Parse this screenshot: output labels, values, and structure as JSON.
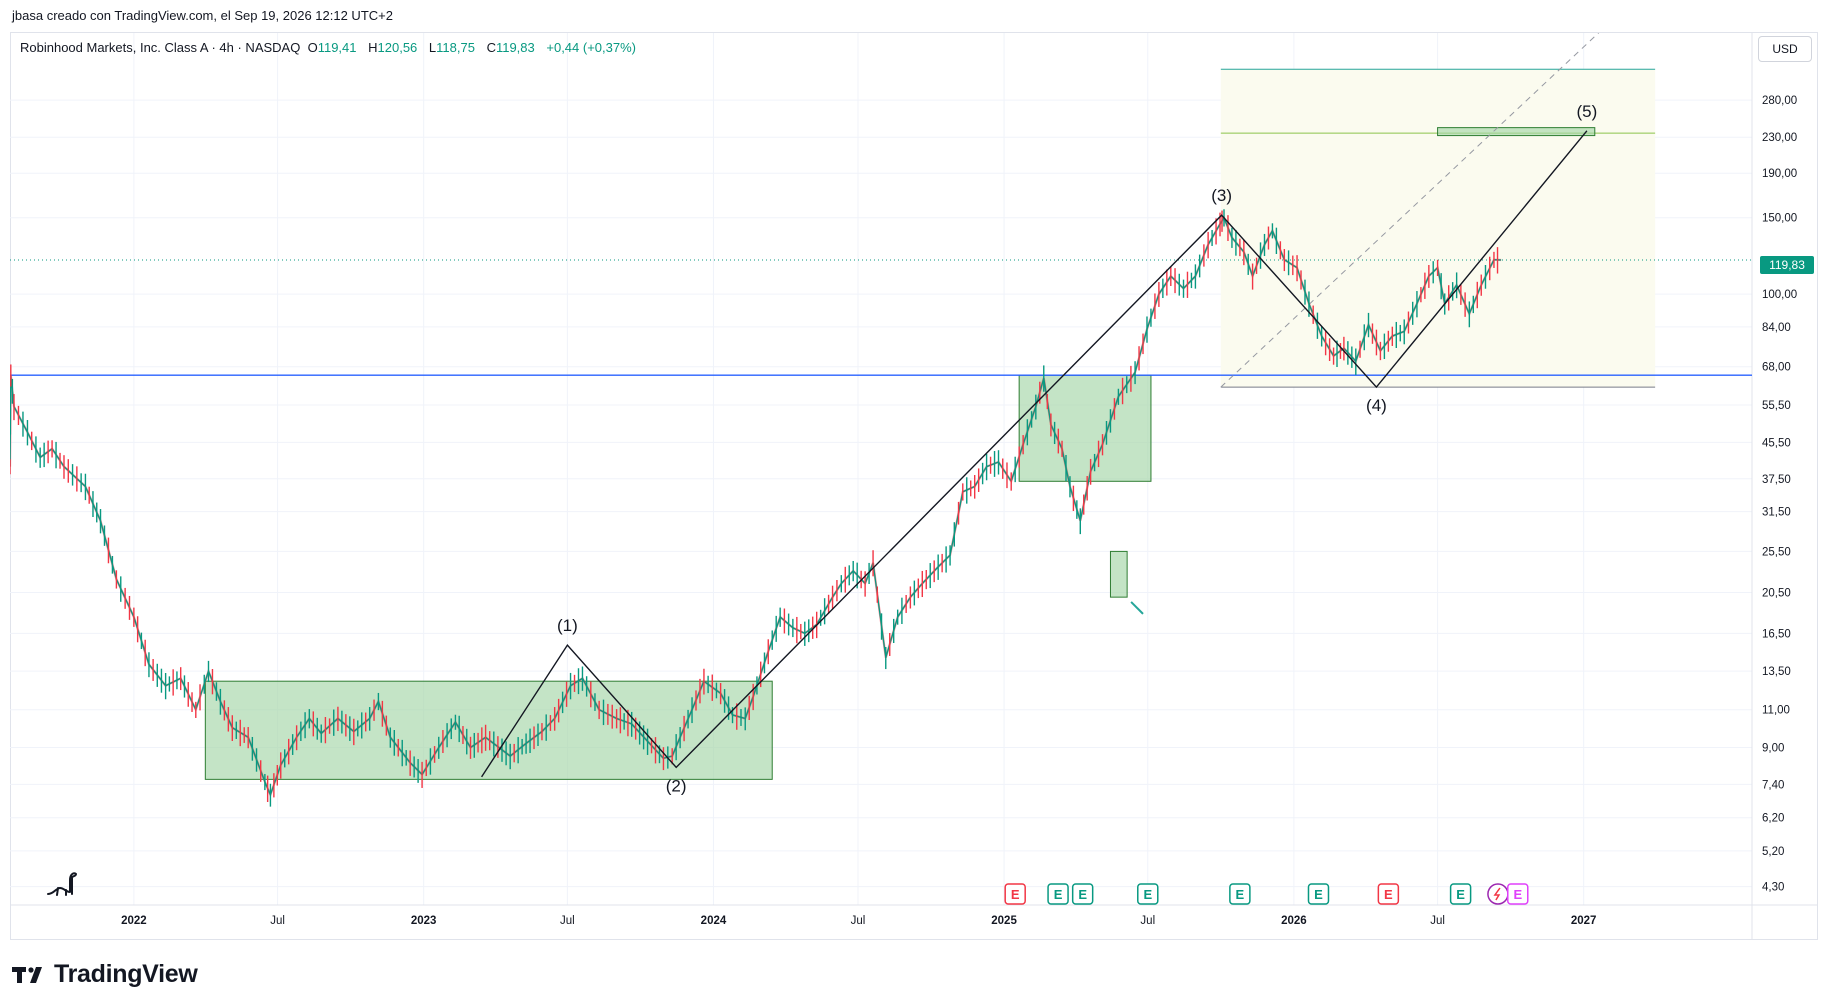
{
  "header": {
    "credit": "jbasa creado con TradingView.com, el Sep 19, 2026 12:12 UTC+2"
  },
  "legend": {
    "symbol": "Robinhood Markets, Inc. Class A · 4h · NASDAQ",
    "open_label": "O",
    "open": "119,41",
    "high_label": "H",
    "high": "120,56",
    "low_label": "L",
    "low": "118,75",
    "close_label": "C",
    "close": "119,83",
    "change": "+0,44 (+0,37%)"
  },
  "currency": "USD",
  "last_price_label": "119,83",
  "brand": {
    "name": "TradingView",
    "icon": "tradingview-logo-icon"
  },
  "colors": {
    "up": "#089981",
    "down": "#f23645",
    "blue_line": "#2962ff",
    "zone_fill": "#a5d6a7",
    "zone_stroke": "#2e7d32",
    "projection_fill": "#fbfbef",
    "teal_line": "#26a69a",
    "green_line": "#8bc34a"
  },
  "chart_data": {
    "type": "line",
    "title": "",
    "xlabel": "",
    "ylabel": "",
    "x_range": [
      "2021-07-29",
      "2027-08-01"
    ],
    "yscale": "log",
    "ylim": [
      3.9,
      400
    ],
    "grid": true,
    "x_tick_labels": [
      {
        "date": "2022-01-01",
        "label": "2022"
      },
      {
        "date": "2022-07-01",
        "label": "Jul"
      },
      {
        "date": "2023-01-01",
        "label": "2023"
      },
      {
        "date": "2023-07-01",
        "label": "Jul"
      },
      {
        "date": "2024-01-01",
        "label": "2024"
      },
      {
        "date": "2024-07-01",
        "label": "Jul"
      },
      {
        "date": "2025-01-01",
        "label": "2025"
      },
      {
        "date": "2025-07-01",
        "label": "Jul"
      },
      {
        "date": "2026-01-01",
        "label": "2026"
      },
      {
        "date": "2026-07-01",
        "label": "Jul"
      },
      {
        "date": "2027-01-01",
        "label": "2027"
      }
    ],
    "y_tick_labels": [
      {
        "value": 280,
        "label": "280,00"
      },
      {
        "value": 230,
        "label": "230,00"
      },
      {
        "value": 190,
        "label": "190,00"
      },
      {
        "value": 150,
        "label": "150,00"
      },
      {
        "value": 100,
        "label": "100,00"
      },
      {
        "value": 84,
        "label": "84,00"
      },
      {
        "value": 68,
        "label": "68,00"
      },
      {
        "value": 55.5,
        "label": "55,50"
      },
      {
        "value": 45.5,
        "label": "45,50"
      },
      {
        "value": 37.5,
        "label": "37,50"
      },
      {
        "value": 31.5,
        "label": "31,50"
      },
      {
        "value": 25.5,
        "label": "25,50"
      },
      {
        "value": 20.5,
        "label": "20,50"
      },
      {
        "value": 16.5,
        "label": "16,50"
      },
      {
        "value": 13.5,
        "label": "13,50"
      },
      {
        "value": 11,
        "label": "11,00"
      },
      {
        "value": 9,
        "label": "9,00"
      },
      {
        "value": 7.4,
        "label": "7,40"
      },
      {
        "value": 6.2,
        "label": "6,20"
      },
      {
        "value": 5.2,
        "label": "5,20"
      },
      {
        "value": 4.3,
        "label": "4,30"
      }
    ],
    "price_path": [
      [
        "2021-07-29",
        40
      ],
      [
        "2021-07-30",
        65
      ],
      [
        "2021-08-03",
        55
      ],
      [
        "2021-08-20",
        48
      ],
      [
        "2021-09-05",
        42
      ],
      [
        "2021-09-20",
        44
      ],
      [
        "2021-10-05",
        40
      ],
      [
        "2021-11-01",
        36
      ],
      [
        "2021-11-20",
        30
      ],
      [
        "2021-12-10",
        22
      ],
      [
        "2022-01-01",
        18
      ],
      [
        "2022-01-20",
        14
      ],
      [
        "2022-02-10",
        12.5
      ],
      [
        "2022-03-01",
        13
      ],
      [
        "2022-03-20",
        11
      ],
      [
        "2022-04-05",
        13.5
      ],
      [
        "2022-04-20",
        11.5
      ],
      [
        "2022-05-05",
        10
      ],
      [
        "2022-05-25",
        9.5
      ],
      [
        "2022-06-15",
        7.5
      ],
      [
        "2022-06-22",
        7
      ],
      [
        "2022-07-05",
        8.2
      ],
      [
        "2022-07-25",
        9.5
      ],
      [
        "2022-08-10",
        10.5
      ],
      [
        "2022-08-25",
        9.7
      ],
      [
        "2022-09-15",
        10.5
      ],
      [
        "2022-10-05",
        9.8
      ],
      [
        "2022-10-25",
        10.5
      ],
      [
        "2022-11-05",
        11.5
      ],
      [
        "2022-11-20",
        9.5
      ],
      [
        "2022-12-15",
        8.3
      ],
      [
        "2022-12-30",
        7.8
      ],
      [
        "2023-01-20",
        9
      ],
      [
        "2023-02-10",
        10.3
      ],
      [
        "2023-03-01",
        9
      ],
      [
        "2023-03-20",
        9.5
      ],
      [
        "2023-04-20",
        8.6
      ],
      [
        "2023-05-10",
        9.2
      ],
      [
        "2023-05-30",
        9.8
      ],
      [
        "2023-06-15",
        10.5
      ],
      [
        "2023-07-05",
        12.5
      ],
      [
        "2023-07-20",
        13
      ],
      [
        "2023-08-10",
        11
      ],
      [
        "2023-09-01",
        10.5
      ],
      [
        "2023-09-20",
        10.2
      ],
      [
        "2023-10-10",
        9.3
      ],
      [
        "2023-10-30",
        8.5
      ],
      [
        "2023-11-10",
        8.6
      ],
      [
        "2023-11-20",
        9.5
      ],
      [
        "2023-12-05",
        11
      ],
      [
        "2023-12-20",
        12.8
      ],
      [
        "2024-01-10",
        12
      ],
      [
        "2024-01-25",
        10.7
      ],
      [
        "2024-02-10",
        10.5
      ],
      [
        "2024-02-20",
        11.8
      ],
      [
        "2024-03-10",
        15
      ],
      [
        "2024-03-25",
        18
      ],
      [
        "2024-04-10",
        17
      ],
      [
        "2024-04-25",
        16.5
      ],
      [
        "2024-05-10",
        17.3
      ],
      [
        "2024-05-30",
        20
      ],
      [
        "2024-06-10",
        21.5
      ],
      [
        "2024-06-25",
        23
      ],
      [
        "2024-07-10",
        21.5
      ],
      [
        "2024-07-20",
        24
      ],
      [
        "2024-08-05",
        14.5
      ],
      [
        "2024-08-20",
        18
      ],
      [
        "2024-09-05",
        20
      ],
      [
        "2024-09-20",
        21.5
      ],
      [
        "2024-10-10",
        23.5
      ],
      [
        "2024-10-25",
        25
      ],
      [
        "2024-11-10",
        35
      ],
      [
        "2024-11-25",
        36
      ],
      [
        "2024-12-10",
        40
      ],
      [
        "2024-12-25",
        41
      ],
      [
        "2025-01-10",
        37
      ],
      [
        "2025-01-25",
        45
      ],
      [
        "2025-02-10",
        55
      ],
      [
        "2025-02-20",
        64
      ],
      [
        "2025-03-01",
        50
      ],
      [
        "2025-03-15",
        44
      ],
      [
        "2025-03-25",
        36
      ],
      [
        "2025-04-07",
        30
      ],
      [
        "2025-04-20",
        39
      ],
      [
        "2025-05-05",
        45
      ],
      [
        "2025-05-25",
        58
      ],
      [
        "2025-06-15",
        66
      ],
      [
        "2025-06-30",
        83
      ],
      [
        "2025-07-15",
        100
      ],
      [
        "2025-07-30",
        110
      ],
      [
        "2025-08-15",
        103
      ],
      [
        "2025-08-30",
        110
      ],
      [
        "2025-09-15",
        130
      ],
      [
        "2025-09-30",
        145
      ],
      [
        "2025-10-05",
        150
      ],
      [
        "2025-10-15",
        135
      ],
      [
        "2025-10-30",
        125
      ],
      [
        "2025-11-10",
        110
      ],
      [
        "2025-11-25",
        130
      ],
      [
        "2025-12-05",
        140
      ],
      [
        "2025-12-20",
        120
      ],
      [
        "2026-01-05",
        115
      ],
      [
        "2026-01-20",
        95
      ],
      [
        "2026-02-05",
        80
      ],
      [
        "2026-02-20",
        72
      ],
      [
        "2026-03-05",
        75
      ],
      [
        "2026-03-20",
        70
      ],
      [
        "2026-04-05",
        85
      ],
      [
        "2026-04-20",
        74
      ],
      [
        "2026-05-05",
        80
      ],
      [
        "2026-05-20",
        82
      ],
      [
        "2026-06-05",
        95
      ],
      [
        "2026-06-20",
        110
      ],
      [
        "2026-07-01",
        115
      ],
      [
        "2026-07-10",
        95
      ],
      [
        "2026-07-25",
        105
      ],
      [
        "2026-08-10",
        90
      ],
      [
        "2026-08-25",
        105
      ],
      [
        "2026-09-10",
        120
      ],
      [
        "2026-09-19",
        119.83
      ]
    ],
    "horizontal_lines": [
      {
        "name": "current-price",
        "value": 119.83,
        "style": "dotted",
        "color": "#089981"
      },
      {
        "name": "blue-support",
        "value": 65,
        "style": "solid",
        "color": "#2962ff"
      }
    ],
    "zones": [
      {
        "name": "accumulation-zone-1",
        "x0": "2022-04-01",
        "x1": "2024-03-15",
        "y0": 7.6,
        "y1": 12.8
      },
      {
        "name": "consolidation-zone-2",
        "x0": "2025-01-20",
        "x1": "2025-07-05",
        "y0": 37,
        "y1": 65
      },
      {
        "name": "small-zone",
        "x0": "2025-05-15",
        "x1": "2025-06-05",
        "y0": 20,
        "y1": 25.5
      },
      {
        "name": "target-zone",
        "x0": "2026-07-01",
        "x1": "2027-01-15",
        "y0": 232,
        "y1": 242
      }
    ],
    "projection": {
      "x0": "2025-10-01",
      "x1": "2027-04-01",
      "y_top": 330,
      "y_bottom": 61,
      "top_line": 330,
      "target_line": 235,
      "bottom_line": 61
    },
    "wave_labels": [
      {
        "label": "(1)",
        "date": "2023-07-01",
        "value": 15.5,
        "position": "above"
      },
      {
        "label": "(2)",
        "date": "2023-11-15",
        "value": 8.1,
        "position": "below"
      },
      {
        "label": "(3)",
        "date": "2025-10-02",
        "value": 152,
        "position": "above"
      },
      {
        "label": "(4)",
        "date": "2026-04-15",
        "value": 61,
        "position": "below"
      },
      {
        "label": "(5)",
        "date": "2027-01-05",
        "value": 238,
        "position": "above"
      }
    ],
    "wave_path": [
      [
        "2023-03-15",
        7.7
      ],
      [
        "2023-07-01",
        15.5
      ],
      [
        "2023-11-15",
        8.1
      ],
      [
        "2025-10-02",
        152
      ],
      [
        "2026-04-15",
        61
      ],
      [
        "2027-01-05",
        238
      ]
    ],
    "dashed_channel": [
      [
        "2025-10-01",
        61
      ],
      [
        "2027-02-01",
        420
      ]
    ],
    "events": [
      {
        "date": "2025-01-15",
        "kind": "E",
        "color": "#f23645"
      },
      {
        "date": "2025-03-10",
        "kind": "E",
        "color": "#089981"
      },
      {
        "date": "2025-04-10",
        "kind": "E",
        "color": "#089981"
      },
      {
        "date": "2025-07-01",
        "kind": "E",
        "color": "#089981"
      },
      {
        "date": "2025-10-25",
        "kind": "E",
        "color": "#089981"
      },
      {
        "date": "2026-02-01",
        "kind": "E",
        "color": "#089981"
      },
      {
        "date": "2026-04-30",
        "kind": "E",
        "color": "#f23645"
      },
      {
        "date": "2026-07-30",
        "kind": "E",
        "color": "#089981"
      },
      {
        "date": "2026-09-15",
        "kind": "flash",
        "color": "#9c27b0"
      },
      {
        "date": "2026-10-10",
        "kind": "E",
        "color": "#e040fb"
      }
    ]
  }
}
